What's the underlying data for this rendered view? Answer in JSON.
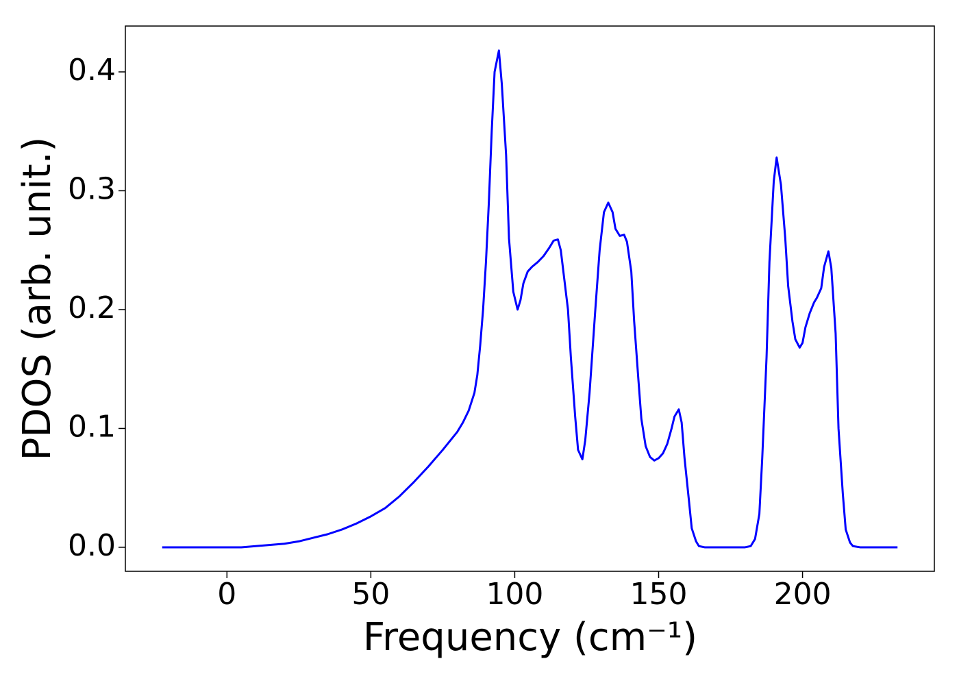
{
  "chart_data": {
    "type": "line",
    "x_label": "Frequency (cm⁻¹)",
    "y_label": "PDOS (arb. unit.)",
    "x": [
      -22.5,
      -10,
      0,
      5,
      10,
      15,
      20,
      25,
      30,
      35,
      40,
      45,
      50,
      55,
      60,
      65,
      70,
      75,
      80,
      82,
      84,
      86,
      87,
      88,
      89,
      90,
      91,
      92,
      93,
      94.5,
      95.5,
      97,
      98,
      99.5,
      101,
      102,
      103,
      104.5,
      106,
      108,
      110,
      112,
      113.5,
      115,
      116,
      117,
      118.5,
      119.5,
      121,
      122,
      123.5,
      124.5,
      126,
      128,
      129.5,
      131,
      132.5,
      134,
      135,
      136.5,
      138,
      139,
      140.5,
      141.5,
      143,
      144,
      145.5,
      147,
      148.5,
      150,
      151.5,
      153,
      154.5,
      155.5,
      157,
      158,
      159,
      160.5,
      161.5,
      163,
      164,
      166,
      170,
      175,
      180,
      182,
      183.5,
      185,
      186,
      187.5,
      188.5,
      190,
      191,
      192.5,
      194,
      195,
      196.5,
      197.5,
      199,
      200,
      201,
      202.5,
      204,
      205,
      206.5,
      207.5,
      209,
      210,
      211.5,
      212.5,
      214,
      215,
      216.5,
      217.5,
      220,
      225,
      233
    ],
    "series": [
      {
        "name": "PDOS",
        "color": "#0000ff",
        "values": [
          0,
          0,
          0,
          0,
          0.001,
          0.002,
          0.003,
          0.005,
          0.008,
          0.011,
          0.015,
          0.02,
          0.026,
          0.033,
          0.043,
          0.055,
          0.068,
          0.082,
          0.097,
          0.105,
          0.115,
          0.13,
          0.145,
          0.17,
          0.2,
          0.24,
          0.29,
          0.35,
          0.4,
          0.418,
          0.39,
          0.33,
          0.26,
          0.215,
          0.2,
          0.208,
          0.222,
          0.232,
          0.236,
          0.24,
          0.245,
          0.252,
          0.258,
          0.259,
          0.25,
          0.23,
          0.2,
          0.16,
          0.11,
          0.082,
          0.074,
          0.09,
          0.13,
          0.2,
          0.25,
          0.282,
          0.29,
          0.282,
          0.268,
          0.262,
          0.263,
          0.257,
          0.232,
          0.19,
          0.14,
          0.108,
          0.085,
          0.076,
          0.073,
          0.075,
          0.079,
          0.087,
          0.1,
          0.11,
          0.116,
          0.105,
          0.075,
          0.04,
          0.016,
          0.005,
          0.001,
          0,
          0,
          0,
          0,
          0.001,
          0.007,
          0.028,
          0.075,
          0.16,
          0.24,
          0.308,
          0.328,
          0.305,
          0.26,
          0.22,
          0.19,
          0.175,
          0.168,
          0.172,
          0.185,
          0.197,
          0.206,
          0.21,
          0.218,
          0.236,
          0.249,
          0.235,
          0.18,
          0.1,
          0.045,
          0.015,
          0.004,
          0.001,
          0,
          0,
          0
        ]
      }
    ],
    "xlim": [
      -35.3,
      245.8
    ],
    "xticks": [
      0,
      50,
      100,
      150,
      200
    ],
    "ylim": [
      -0.0202,
      0.4386
    ],
    "yticks": [
      {
        "value": 0,
        "label": "0.0"
      },
      0.1,
      0.2,
      0.3,
      0.4
    ],
    "grid": false
  }
}
